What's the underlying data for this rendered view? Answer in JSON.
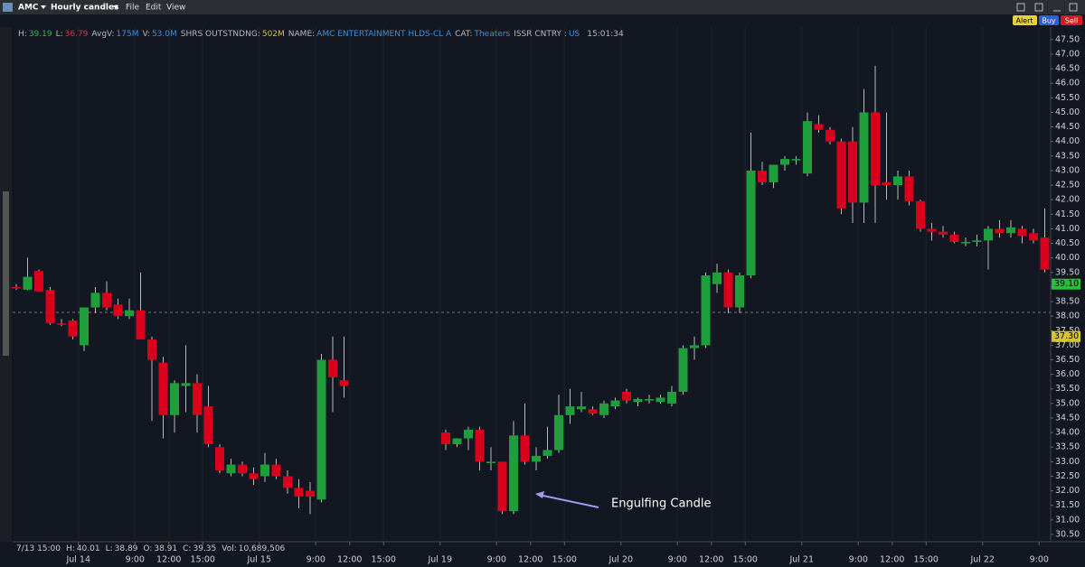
{
  "header": {
    "symbol": "AMC",
    "chart_kind": "Hourly candles",
    "menu": [
      "File",
      "Edit",
      "View"
    ],
    "buttons": [
      "Alert",
      "Buy",
      "Sell"
    ]
  },
  "info_bar": {
    "fields": [
      {
        "label": "H:",
        "value": "39.19",
        "color": "#2bbd4a"
      },
      {
        "label": "L:",
        "value": "36.79",
        "color": "#e0323a"
      },
      {
        "label": "AvgV:",
        "value": "175M",
        "color": "#3d8fe0"
      },
      {
        "label": "V:",
        "value": "53.0M",
        "color": "#3d8fe0"
      },
      {
        "label": "SHRS OUTSTNDNG:",
        "value": "502M",
        "color": "#d8c23a"
      },
      {
        "label": "NAME:",
        "value": "AMC ENTERTAINMENT HLDS-CL A",
        "color": "#3d8fe0"
      },
      {
        "label": "CAT:",
        "value": "Theaters",
        "color": "#3d8fe0"
      },
      {
        "label": "ISSR CNTRY :",
        "value": "US",
        "color": "#3d8fe0"
      }
    ],
    "time": "15:01:34"
  },
  "status_bar": {
    "time": "7/13 15:00",
    "fields": [
      {
        "label": "H:",
        "value": "40.01"
      },
      {
        "label": "L:",
        "value": "38.89"
      },
      {
        "label": "O:",
        "value": "38.91"
      },
      {
        "label": "C:",
        "value": "39.35"
      },
      {
        "label": "Vol:",
        "value": "10,689,506"
      }
    ]
  },
  "chart_data": {
    "type": "candlestick",
    "x": [
      0,
      1,
      2,
      3,
      4,
      5,
      6,
      7,
      8,
      9,
      10,
      11,
      12,
      13,
      14,
      15,
      16,
      17,
      18,
      19,
      20,
      21,
      22,
      23,
      24,
      25,
      26,
      27,
      28,
      29,
      38,
      39,
      40,
      41,
      42,
      43,
      44,
      45,
      46,
      47,
      48,
      49,
      50,
      51,
      52,
      53,
      54,
      55,
      56,
      57,
      58,
      59,
      60,
      61,
      62,
      63,
      64,
      65,
      66,
      67,
      68,
      69,
      70,
      71,
      72,
      73,
      74,
      75,
      76,
      77,
      78,
      79,
      80,
      81,
      82,
      83,
      84,
      85,
      86,
      87,
      88,
      89,
      90,
      91
    ],
    "open": [
      39.0,
      38.91,
      39.55,
      38.9,
      37.75,
      37.85,
      37.0,
      38.3,
      38.8,
      38.4,
      38.0,
      38.2,
      37.2,
      36.4,
      34.6,
      35.6,
      35.7,
      34.9,
      33.5,
      32.6,
      32.9,
      32.6,
      32.5,
      32.9,
      32.5,
      32.1,
      32.0,
      31.7,
      36.5,
      35.8,
      34.0,
      33.6,
      33.8,
      34.1,
      32.95,
      33.0,
      31.3,
      33.9,
      33.0,
      33.2,
      33.4,
      34.6,
      34.8,
      34.8,
      34.6,
      34.9,
      35.4,
      35.05,
      35.1,
      35.05,
      35.0,
      35.4,
      36.9,
      37.0,
      39.1,
      39.5,
      38.3,
      39.4,
      43.0,
      42.6,
      43.2,
      43.35,
      42.9,
      44.6,
      44.4,
      44.0,
      44.0,
      41.9,
      45.0,
      42.6,
      42.5,
      42.8,
      41.95,
      41.0,
      40.9,
      40.8,
      40.5,
      40.55,
      40.6,
      41.0,
      40.85,
      41.0,
      40.85,
      40.7
    ],
    "high": [
      39.1,
      40.01,
      39.6,
      39.0,
      37.9,
      37.9,
      38.3,
      39.0,
      39.2,
      38.6,
      38.6,
      39.5,
      37.3,
      36.6,
      35.8,
      37.0,
      36.0,
      35.6,
      33.6,
      33.1,
      33.0,
      32.8,
      33.3,
      33.1,
      32.7,
      32.4,
      32.3,
      36.7,
      37.3,
      37.3,
      34.1,
      33.8,
      34.2,
      34.2,
      33.5,
      33.0,
      34.4,
      35.0,
      33.5,
      34.2,
      35.3,
      35.5,
      35.4,
      34.9,
      35.1,
      35.2,
      35.5,
      35.2,
      35.3,
      35.3,
      35.6,
      37.0,
      37.3,
      39.5,
      39.8,
      39.6,
      39.5,
      44.3,
      43.3,
      43.2,
      43.5,
      43.5,
      45.0,
      44.9,
      44.5,
      44.1,
      44.5,
      45.8,
      46.6,
      45.0,
      43.0,
      43.0,
      42.0,
      41.2,
      41.1,
      40.9,
      40.7,
      40.8,
      41.1,
      41.3,
      41.3,
      41.1,
      41.0,
      41.7
    ],
    "low": [
      38.9,
      38.89,
      38.85,
      37.7,
      37.65,
      37.2,
      36.8,
      38.1,
      38.2,
      37.9,
      37.9,
      37.2,
      34.4,
      33.8,
      34.0,
      34.7,
      34.0,
      33.5,
      32.6,
      32.5,
      32.5,
      32.2,
      32.3,
      32.4,
      31.9,
      31.4,
      31.2,
      31.6,
      34.7,
      35.2,
      33.4,
      33.5,
      33.4,
      32.7,
      32.7,
      31.2,
      31.2,
      32.9,
      32.7,
      33.1,
      33.3,
      34.3,
      34.7,
      34.6,
      34.5,
      34.8,
      35.0,
      34.9,
      35.0,
      35.0,
      34.9,
      35.3,
      36.5,
      36.9,
      38.8,
      38.1,
      38.1,
      39.3,
      42.5,
      42.4,
      43.0,
      43.2,
      42.8,
      44.3,
      43.9,
      41.5,
      41.2,
      41.2,
      41.2,
      42.0,
      42.0,
      41.8,
      40.9,
      40.6,
      40.7,
      40.5,
      40.4,
      40.4,
      39.6,
      40.7,
      40.7,
      40.5,
      40.5,
      39.5
    ],
    "close": [
      38.95,
      39.35,
      38.85,
      37.75,
      37.7,
      37.3,
      38.3,
      38.8,
      38.3,
      38.0,
      38.2,
      37.2,
      36.5,
      34.6,
      35.7,
      35.7,
      34.6,
      33.6,
      32.7,
      32.9,
      32.6,
      32.4,
      32.9,
      32.5,
      32.1,
      31.8,
      31.8,
      36.5,
      35.9,
      35.6,
      33.6,
      33.8,
      34.1,
      33.0,
      33.0,
      31.3,
      33.9,
      33.0,
      33.2,
      33.4,
      34.6,
      34.9,
      34.9,
      34.65,
      35.0,
      35.1,
      35.1,
      35.15,
      35.15,
      35.2,
      35.4,
      36.9,
      37.0,
      39.4,
      39.5,
      38.3,
      39.4,
      43.0,
      42.6,
      43.2,
      43.4,
      43.4,
      44.7,
      44.4,
      44.0,
      41.7,
      41.9,
      45.0,
      42.5,
      42.5,
      42.8,
      41.95,
      41.0,
      40.9,
      40.8,
      40.55,
      40.55,
      40.6,
      41.0,
      40.85,
      41.05,
      40.75,
      40.6,
      39.6
    ],
    "up_color": "#1f9e3c",
    "down_color": "#d9001b",
    "xlim": [
      -0.32,
      91.52
    ],
    "xticks": [
      {
        "value": 5.5,
        "label": "Jul 14"
      },
      {
        "value": 10.5,
        "label": "9:00"
      },
      {
        "value": 13.5,
        "label": "12:00"
      },
      {
        "value": 16.5,
        "label": "15:00"
      },
      {
        "value": 21.5,
        "label": "Jul 15"
      },
      {
        "value": 26.5,
        "label": "9:00"
      },
      {
        "value": 29.5,
        "label": "12:00"
      },
      {
        "value": 32.5,
        "label": "15:00"
      },
      {
        "value": 37.5,
        "label": "Jul 19"
      },
      {
        "value": 42.5,
        "label": "9:00"
      },
      {
        "value": 45.5,
        "label": "12:00"
      },
      {
        "value": 48.5,
        "label": "15:00"
      },
      {
        "value": 53.5,
        "label": "Jul 20"
      },
      {
        "value": 58.5,
        "label": "9:00"
      },
      {
        "value": 61.5,
        "label": "12:00"
      },
      {
        "value": 64.5,
        "label": "15:00"
      },
      {
        "value": 69.5,
        "label": "Jul 21"
      },
      {
        "value": 74.5,
        "label": "9:00"
      },
      {
        "value": 77.5,
        "label": "12:00"
      },
      {
        "value": 80.5,
        "label": "15:00"
      },
      {
        "value": 85.5,
        "label": "Jul 22"
      },
      {
        "value": 90.5,
        "label": "9:00"
      }
    ],
    "ylim": [
      30.25,
      47.93
    ],
    "yticks": [
      {
        "value": 30.5,
        "label": "30.50"
      },
      {
        "value": 31,
        "label": "31.00"
      },
      {
        "value": 31.5,
        "label": "31.50"
      },
      {
        "value": 32,
        "label": "32.00"
      },
      {
        "value": 32.5,
        "label": "32.50"
      },
      {
        "value": 33,
        "label": "33.00"
      },
      {
        "value": 33.5,
        "label": "33.50"
      },
      {
        "value": 34,
        "label": "34.00"
      },
      {
        "value": 34.5,
        "label": "34.50"
      },
      {
        "value": 35,
        "label": "35.00"
      },
      {
        "value": 35.5,
        "label": "35.50"
      },
      {
        "value": 36,
        "label": "36.00"
      },
      {
        "value": 36.5,
        "label": "36.50"
      },
      {
        "value": 37,
        "label": "37.00"
      },
      {
        "value": 37.5,
        "label": "37.50"
      },
      {
        "value": 38,
        "label": "38.00"
      },
      {
        "value": 38.5,
        "label": "38.50"
      },
      {
        "value": 39,
        "label": "39.00"
      },
      {
        "value": 39.5,
        "label": "39.50"
      },
      {
        "value": 40,
        "label": "40.00"
      },
      {
        "value": 40.5,
        "label": "40.50"
      },
      {
        "value": 41,
        "label": "41.00"
      },
      {
        "value": 41.5,
        "label": "41.50"
      },
      {
        "value": 42,
        "label": "42.00"
      },
      {
        "value": 42.5,
        "label": "42.50"
      },
      {
        "value": 43,
        "label": "43.00"
      },
      {
        "value": 43.5,
        "label": "43.50"
      },
      {
        "value": 44,
        "label": "44.00"
      },
      {
        "value": 44.5,
        "label": "44.50"
      },
      {
        "value": 45,
        "label": "45.00"
      },
      {
        "value": 45.5,
        "label": "45.50"
      },
      {
        "value": 46,
        "label": "46.00"
      },
      {
        "value": 46.5,
        "label": "46.50"
      },
      {
        "value": 47,
        "label": "47.00"
      },
      {
        "value": 47.5,
        "label": "47.50"
      }
    ],
    "grid": true,
    "reference_line": 38.13,
    "price_tags": [
      {
        "value": 39.1,
        "label": "39.10",
        "color": "#22c23a"
      },
      {
        "value": 37.3,
        "label": "37.30",
        "color": "#d6c62c"
      }
    ],
    "annotation": "Engulfing Candle"
  }
}
